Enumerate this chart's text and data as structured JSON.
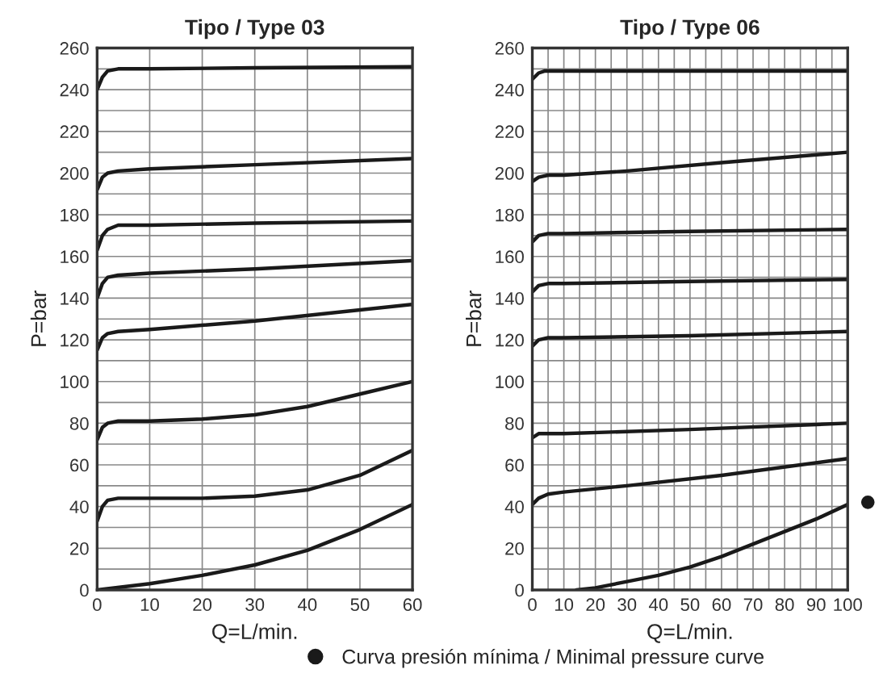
{
  "chart_data": [
    {
      "type": "line",
      "title": "Tipo / Type 03",
      "xlabel": "Q=L/min.",
      "ylabel": "P=bar",
      "grid": true,
      "marker": "none",
      "line_style": "solid",
      "xlim": [
        0,
        60
      ],
      "xticks": [
        0,
        10,
        20,
        30,
        40,
        50,
        60
      ],
      "ylim": [
        0,
        260
      ],
      "yticks": [
        0,
        {
          "value": 10,
          "label": null
        },
        20,
        {
          "value": 30,
          "label": null
        },
        40,
        {
          "value": 50,
          "label": null
        },
        60,
        {
          "value": 70,
          "label": null
        },
        80,
        {
          "value": 90,
          "label": null
        },
        100,
        {
          "value": 110,
          "label": null
        },
        120,
        {
          "value": 130,
          "label": null
        },
        140,
        {
          "value": 150,
          "label": null
        },
        160,
        {
          "value": 170,
          "label": null
        },
        180,
        {
          "value": 190,
          "label": null
        },
        200,
        {
          "value": 210,
          "label": null
        },
        220,
        {
          "value": 230,
          "label": null
        },
        240,
        {
          "value": 250,
          "label": null
        },
        260
      ],
      "series": [
        {
          "color": "#1a1a1a",
          "x": [
            0,
            1,
            2,
            4,
            10,
            30,
            60
          ],
          "values": [
            240,
            246,
            249,
            250,
            250,
            250.5,
            251
          ]
        },
        {
          "color": "#1a1a1a",
          "x": [
            0,
            1,
            2,
            4,
            10,
            30,
            60
          ],
          "values": [
            192,
            198,
            200,
            201,
            202,
            204,
            207
          ]
        },
        {
          "color": "#1a1a1a",
          "x": [
            0,
            1,
            2,
            4,
            10,
            30,
            60
          ],
          "values": [
            163,
            170,
            173,
            175,
            175,
            176,
            177
          ]
        },
        {
          "color": "#1a1a1a",
          "x": [
            0,
            1,
            2,
            4,
            10,
            30,
            60
          ],
          "values": [
            140,
            147,
            150,
            151,
            152,
            154,
            158
          ]
        },
        {
          "color": "#1a1a1a",
          "x": [
            0,
            1,
            2,
            4,
            10,
            30,
            60
          ],
          "values": [
            115,
            121,
            123,
            124,
            125,
            129,
            137
          ]
        },
        {
          "color": "#1a1a1a",
          "x": [
            0,
            1,
            2,
            4,
            10,
            20,
            30,
            40,
            50,
            60
          ],
          "values": [
            72,
            78,
            80,
            81,
            81,
            82,
            84,
            88,
            94,
            100
          ]
        },
        {
          "color": "#1a1a1a",
          "x": [
            0,
            1,
            2,
            4,
            10,
            20,
            30,
            40,
            50,
            60
          ],
          "values": [
            33,
            40,
            43,
            44,
            44,
            44,
            45,
            48,
            55,
            67
          ]
        },
        {
          "color": "#1a1a1a",
          "x": [
            0,
            10,
            20,
            30,
            40,
            50,
            60
          ],
          "values": [
            0,
            3,
            7,
            12,
            19,
            29,
            41
          ]
        }
      ]
    },
    {
      "type": "line",
      "title": "Tipo / Type 06",
      "xlabel": "Q=L/min.",
      "ylabel": "P=bar",
      "grid": true,
      "marker": "none",
      "line_style": "solid",
      "legend": "bottom",
      "xlim": [
        0,
        100
      ],
      "xticks": [
        0,
        {
          "value": 5,
          "label": null
        },
        10,
        {
          "value": 15,
          "label": null
        },
        20,
        {
          "value": 25,
          "label": null
        },
        30,
        {
          "value": 35,
          "label": null
        },
        40,
        {
          "value": 45,
          "label": null
        },
        50,
        {
          "value": 55,
          "label": null
        },
        60,
        {
          "value": 65,
          "label": null
        },
        70,
        {
          "value": 75,
          "label": null
        },
        80,
        {
          "value": 85,
          "label": null
        },
        90,
        {
          "value": 95,
          "label": null
        },
        100
      ],
      "ylim": [
        0,
        260
      ],
      "yticks": [
        0,
        {
          "value": 10,
          "label": null
        },
        20,
        {
          "value": 30,
          "label": null
        },
        40,
        {
          "value": 50,
          "label": null
        },
        60,
        {
          "value": 70,
          "label": null
        },
        80,
        {
          "value": 90,
          "label": null
        },
        100,
        {
          "value": 110,
          "label": null
        },
        120,
        {
          "value": 130,
          "label": null
        },
        140,
        {
          "value": 150,
          "label": null
        },
        160,
        {
          "value": 170,
          "label": null
        },
        180,
        {
          "value": 190,
          "label": null
        },
        200,
        {
          "value": 210,
          "label": null
        },
        220,
        {
          "value": 230,
          "label": null
        },
        240,
        {
          "value": 250,
          "label": null
        },
        260
      ],
      "series": [
        {
          "color": "#1a1a1a",
          "x": [
            0,
            2,
            4,
            6,
            20,
            100
          ],
          "values": [
            245,
            248,
            249,
            249,
            249,
            249
          ]
        },
        {
          "color": "#1a1a1a",
          "x": [
            0,
            2,
            5,
            10,
            30,
            60,
            100
          ],
          "values": [
            196,
            198,
            199,
            199,
            201,
            205,
            210
          ]
        },
        {
          "color": "#1a1a1a",
          "x": [
            0,
            2,
            5,
            10,
            50,
            100
          ],
          "values": [
            167,
            170,
            171,
            171,
            172,
            173
          ]
        },
        {
          "color": "#1a1a1a",
          "x": [
            0,
            2,
            5,
            10,
            50,
            100
          ],
          "values": [
            143,
            146,
            147,
            147,
            148,
            149
          ]
        },
        {
          "color": "#1a1a1a",
          "x": [
            0,
            2,
            5,
            10,
            50,
            100
          ],
          "values": [
            117,
            120,
            121,
            121,
            122,
            124
          ]
        },
        {
          "color": "#1a1a1a",
          "x": [
            0,
            2,
            5,
            10,
            50,
            100
          ],
          "values": [
            73,
            75,
            75,
            75,
            77,
            80
          ]
        },
        {
          "color": "#1a1a1a",
          "x": [
            0,
            2,
            5,
            10,
            30,
            60,
            100
          ],
          "values": [
            41,
            44,
            46,
            47,
            50,
            55,
            63
          ]
        },
        {
          "name": "Curva presión mínima / Minimal pressure curve",
          "color": "#1a1a1a",
          "x": [
            14,
            20,
            30,
            40,
            50,
            60,
            70,
            80,
            90,
            100
          ],
          "values": [
            0,
            1,
            4,
            7,
            11,
            16,
            22,
            28,
            34,
            41
          ]
        }
      ]
    }
  ]
}
